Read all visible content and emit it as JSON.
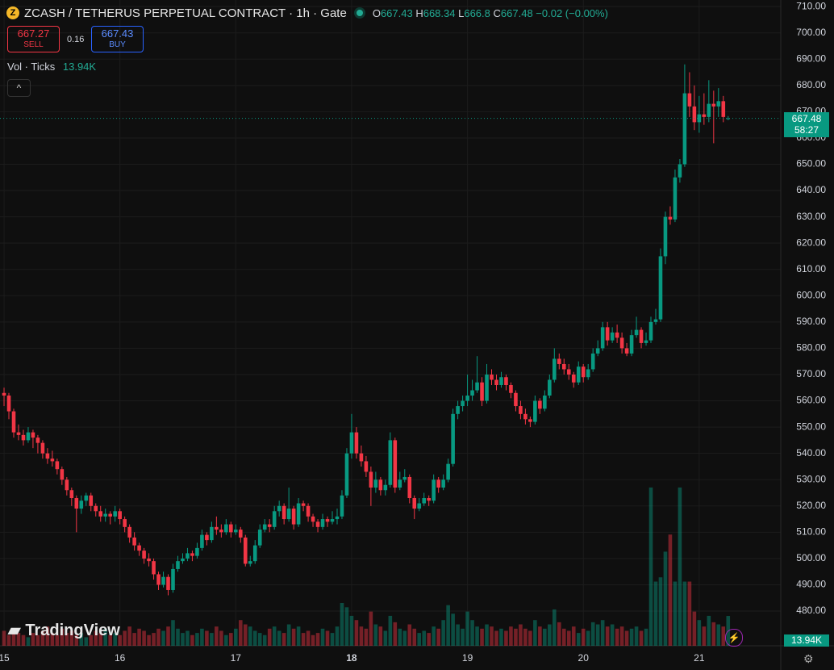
{
  "header": {
    "title": "ZCASH / TETHERUS PERPETUAL CONTRACT · 1h · Gate",
    "ohlc_letters": [
      "O",
      "H",
      "L",
      "C"
    ],
    "change_text": "−0.02 (−0.00%)",
    "sell_price": 667.27,
    "sell_label": "SELL",
    "spread": 0.16,
    "buy_price": 667.43,
    "buy_label": "BUY",
    "volume_title": "Vol · Ticks",
    "last_volume_label": "13.94K",
    "countdown": "58:27",
    "logo": "TradingView"
  },
  "chart_data": {
    "type": "candlestick",
    "up_color": "#089981",
    "down_color": "#f23645",
    "grid": true,
    "ylim": [
      466.8,
      712.5
    ],
    "yticks": [
      {
        "value": 480,
        "label": "480.00"
      },
      {
        "value": 490,
        "label": "490.00"
      },
      {
        "value": 500,
        "label": "500.00"
      },
      {
        "value": 510,
        "label": "510.00"
      },
      {
        "value": 520,
        "label": "520.00"
      },
      {
        "value": 530,
        "label": "530.00"
      },
      {
        "value": 540,
        "label": "540.00"
      },
      {
        "value": 550,
        "label": "550.00"
      },
      {
        "value": 560,
        "label": "560.00"
      },
      {
        "value": 570,
        "label": "570.00"
      },
      {
        "value": 580,
        "label": "580.00"
      },
      {
        "value": 590,
        "label": "590.00"
      },
      {
        "value": 600,
        "label": "600.00"
      },
      {
        "value": 610,
        "label": "610.00"
      },
      {
        "value": 620,
        "label": "620.00"
      },
      {
        "value": 630,
        "label": "630.00"
      },
      {
        "value": 640,
        "label": "640.00"
      },
      {
        "value": 650,
        "label": "650.00"
      },
      {
        "value": 660,
        "label": "660.00"
      },
      {
        "value": 670,
        "label": "670.00"
      },
      {
        "value": 680,
        "label": "680.00"
      },
      {
        "value": 690,
        "label": "690.00"
      },
      {
        "value": 700,
        "label": "700.00"
      },
      {
        "value": 710,
        "label": "710.00"
      }
    ],
    "xlim": [
      -0.84,
      160.9
    ],
    "xticks": [
      {
        "value": 0,
        "label": "15"
      },
      {
        "value": 24,
        "label": "16"
      },
      {
        "value": 48,
        "label": "17"
      },
      {
        "value": 72,
        "label": "18"
      },
      {
        "value": 96,
        "label": "19"
      },
      {
        "value": 120,
        "label": "20"
      },
      {
        "value": 144,
        "label": "21"
      }
    ],
    "open": [
      563,
      562,
      556,
      548,
      547,
      545,
      548,
      546,
      544,
      540,
      538,
      537,
      534,
      530,
      526,
      523,
      519,
      522,
      524,
      520,
      518,
      516,
      517,
      516,
      518,
      515,
      512,
      508,
      505,
      503,
      500,
      499,
      494,
      490,
      493,
      488,
      496,
      499,
      500,
      502,
      501,
      504,
      509,
      507,
      512,
      511,
      510,
      513,
      510,
      511,
      508,
      498,
      499,
      505,
      511,
      513,
      512,
      518,
      520,
      515,
      519,
      513,
      521,
      520,
      516,
      514,
      512,
      515,
      514,
      515,
      516,
      524,
      540,
      548,
      540,
      537,
      533,
      527,
      530,
      526,
      528,
      545,
      527,
      530,
      531,
      523,
      519,
      521,
      523,
      522,
      530,
      527,
      530,
      536,
      555,
      558,
      560,
      562,
      564,
      567,
      560,
      570,
      568,
      566,
      569,
      566,
      563,
      558,
      555,
      553,
      552,
      560,
      557,
      562,
      568,
      576,
      574,
      572,
      570,
      567,
      573,
      569,
      572,
      578,
      580,
      588,
      583,
      586,
      584,
      580,
      578,
      585,
      587,
      582,
      583,
      590,
      591,
      615,
      630,
      629,
      645,
      650,
      677,
      672,
      666,
      669,
      668,
      673,
      672,
      674,
      667.43
    ],
    "high": [
      565,
      563,
      557,
      551,
      549,
      550,
      549,
      547,
      545,
      542,
      541,
      538,
      535,
      531,
      527,
      524,
      524,
      525,
      525,
      521,
      520,
      519,
      518,
      520,
      519,
      516,
      513,
      510,
      506,
      504,
      502,
      500,
      495,
      495,
      494,
      498,
      501,
      502,
      504,
      503,
      506,
      511,
      510,
      514,
      516,
      513,
      515,
      514,
      513,
      512,
      509,
      501,
      507,
      513,
      515,
      515,
      520,
      522,
      521,
      527,
      520,
      523,
      522,
      521,
      517,
      515,
      517,
      516,
      518,
      519,
      526,
      542,
      555,
      550,
      543,
      539,
      535,
      533,
      531,
      530,
      548,
      546,
      533,
      534,
      532,
      524,
      523,
      525,
      524,
      532,
      531,
      532,
      538,
      557,
      560,
      562,
      570,
      568,
      577,
      569,
      574,
      572,
      570,
      571,
      570,
      567,
      564,
      560,
      557,
      554,
      562,
      561,
      564,
      570,
      580,
      578,
      576,
      574,
      571,
      575,
      574,
      574,
      580,
      583,
      590,
      590,
      588,
      589,
      586,
      582,
      587,
      592,
      588,
      586,
      592,
      595,
      618,
      632,
      634,
      648,
      652,
      688,
      685,
      680,
      676,
      677,
      682,
      678,
      679,
      676,
      668.34
    ],
    "low": [
      558,
      553,
      546,
      545,
      543,
      544,
      542,
      540,
      538,
      536,
      535,
      532,
      528,
      524,
      520,
      510,
      517,
      520,
      518,
      516,
      514,
      514,
      513,
      514,
      513,
      510,
      506,
      503,
      501,
      498,
      497,
      492,
      488,
      489,
      486,
      487,
      495,
      498,
      499,
      499,
      500,
      503,
      505,
      506,
      509,
      508,
      509,
      508,
      509,
      506,
      497,
      497,
      498,
      504,
      510,
      510,
      511,
      516,
      513,
      514,
      511,
      512,
      518,
      514,
      512,
      510,
      511,
      512,
      513,
      513,
      515,
      523,
      538,
      538,
      535,
      531,
      520,
      525,
      524,
      524,
      527,
      525,
      526,
      529,
      521,
      515,
      518,
      520,
      520,
      521,
      525,
      526,
      529,
      535,
      553,
      556,
      558,
      560,
      563,
      558,
      559,
      566,
      564,
      565,
      564,
      561,
      556,
      553,
      551,
      550,
      551,
      555,
      556,
      561,
      567,
      572,
      570,
      568,
      565,
      566,
      567,
      568,
      571,
      577,
      579,
      581,
      582,
      582,
      578,
      577,
      577,
      584,
      580,
      581,
      582,
      589,
      590,
      612,
      627,
      628,
      643,
      649,
      668,
      663,
      662,
      665,
      666,
      658,
      668,
      666,
      666.8
    ],
    "close": [
      562,
      556,
      548,
      547,
      545,
      548,
      546,
      544,
      540,
      538,
      537,
      534,
      530,
      526,
      523,
      519,
      522,
      524,
      520,
      518,
      516,
      517,
      516,
      518,
      515,
      512,
      508,
      505,
      503,
      500,
      499,
      494,
      490,
      493,
      488,
      496,
      499,
      500,
      502,
      501,
      504,
      509,
      507,
      512,
      511,
      510,
      513,
      510,
      511,
      508,
      498,
      499,
      505,
      511,
      513,
      512,
      518,
      520,
      515,
      519,
      513,
      521,
      520,
      516,
      514,
      512,
      515,
      514,
      515,
      516,
      524,
      540,
      548,
      540,
      537,
      533,
      527,
      530,
      526,
      528,
      545,
      527,
      530,
      531,
      523,
      519,
      521,
      523,
      522,
      530,
      527,
      530,
      536,
      555,
      558,
      560,
      562,
      564,
      567,
      560,
      570,
      568,
      566,
      569,
      566,
      563,
      558,
      555,
      553,
      552,
      560,
      557,
      562,
      568,
      576,
      574,
      572,
      570,
      567,
      573,
      569,
      572,
      578,
      580,
      588,
      583,
      586,
      584,
      580,
      578,
      585,
      587,
      582,
      583,
      590,
      591,
      615,
      630,
      629,
      645,
      650,
      677,
      672,
      666,
      669,
      668,
      673,
      672,
      674,
      668,
      667.48
    ],
    "volume": [
      7,
      5,
      8,
      6,
      5,
      4,
      6,
      5,
      7,
      9,
      6,
      5,
      8,
      6,
      7,
      5,
      6,
      4,
      5,
      7,
      6,
      8,
      5,
      6,
      5,
      7,
      9,
      6,
      8,
      7,
      5,
      6,
      8,
      7,
      9,
      12,
      8,
      6,
      7,
      5,
      6,
      8,
      7,
      6,
      9,
      7,
      5,
      6,
      8,
      12,
      10,
      9,
      7,
      6,
      5,
      8,
      9,
      7,
      6,
      10,
      8,
      9,
      6,
      7,
      5,
      6,
      8,
      7,
      6,
      9,
      20,
      18,
      14,
      12,
      9,
      8,
      16,
      10,
      9,
      7,
      14,
      11,
      8,
      7,
      10,
      8,
      6,
      7,
      6,
      9,
      8,
      12,
      19,
      15,
      10,
      8,
      16,
      12,
      9,
      8,
      10,
      9,
      7,
      8,
      7,
      9,
      8,
      10,
      8,
      7,
      12,
      9,
      8,
      10,
      17,
      11,
      8,
      7,
      9,
      6,
      8,
      7,
      11,
      10,
      12,
      9,
      10,
      8,
      9,
      7,
      8,
      9,
      7,
      8,
      74,
      30,
      32,
      44,
      52,
      30,
      74,
      30,
      30,
      16,
      12,
      9,
      14,
      11,
      10,
      9,
      13.94
    ]
  }
}
